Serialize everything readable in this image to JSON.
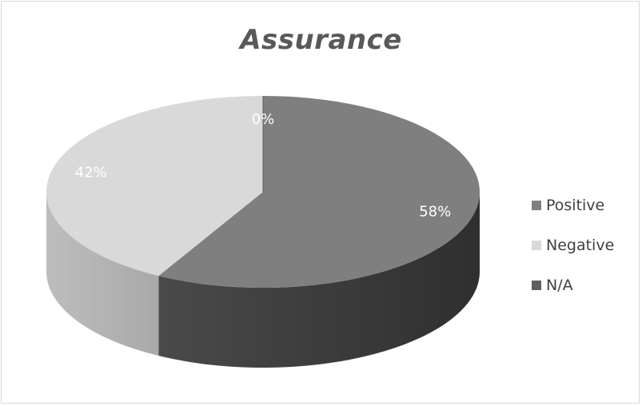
{
  "chart_data": {
    "type": "pie",
    "title": "Assurance",
    "categories": [
      "Positive",
      "Negative",
      "N/A"
    ],
    "values": [
      58,
      42,
      0
    ],
    "labels": [
      "58%",
      "42%",
      "0%"
    ],
    "colors": [
      "#7f7f7f",
      "#d9d9d9",
      "#5f5f5f"
    ],
    "legend_position": "right",
    "style": "3d"
  }
}
